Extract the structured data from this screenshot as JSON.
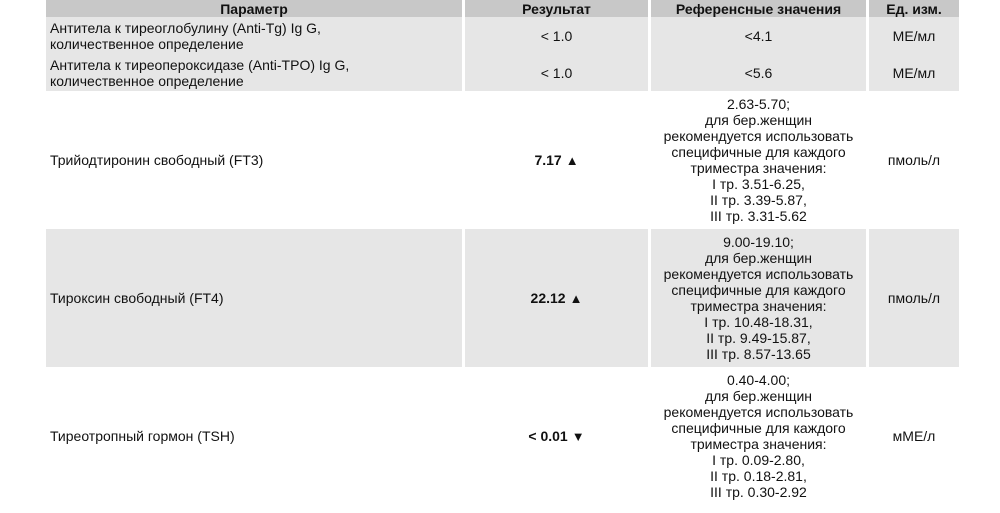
{
  "headers": {
    "param": "Параметр",
    "result": "Результат",
    "reference": "Референсные значения",
    "unit": "Ед. изм."
  },
  "rows": [
    {
      "param_line1": "Антитела к тиреоглобулину (Anti-Tg) Ig G,",
      "param_line2": "количественное определение",
      "result": "< 1.0",
      "flag": "",
      "ref": [
        "<4.1"
      ],
      "unit": "МЕ/мл"
    },
    {
      "param_line1": "Антитела к тиреопероксидазе (Anti-TPO) Ig G,",
      "param_line2": "количественное определение",
      "result": "< 1.0",
      "flag": "",
      "ref": [
        "<5.6"
      ],
      "unit": "МЕ/мл"
    },
    {
      "param_line1": "Трийодтиронин свободный (FT3)",
      "result": "7.17",
      "flag": "▲",
      "ref": [
        "2.63-5.70;",
        "для бер.женщин",
        "рекомендуется использовать",
        "специфичные для каждого",
        "триместра значения:",
        "I тр. 3.51-6.25,",
        "II тр. 3.39-5.87,",
        "III тр. 3.31-5.62"
      ],
      "unit": "пмоль/л"
    },
    {
      "param_line1": "Тироксин свободный (FT4)",
      "result": "22.12",
      "flag": "▲",
      "ref": [
        "9.00-19.10;",
        "для бер.женщин",
        "рекомендуется использовать",
        "специфичные для каждого",
        "триместра значения:",
        "I тр. 10.48-18.31,",
        "II тр. 9.49-15.87,",
        "III тр. 8.57-13.65"
      ],
      "unit": "пмоль/л"
    },
    {
      "param_line1": "Тиреотропный гормон (TSH)",
      "result": "< 0.01",
      "flag": "▼",
      "ref": [
        "0.40-4.00;",
        "для бер.женщин",
        "рекомендуется использовать",
        "специфичные для каждого",
        "триместра значения:",
        "I тр. 0.09-2.80,",
        "II тр. 0.18-2.81,",
        "III тр. 0.30-2.92"
      ],
      "unit": "мМЕ/л"
    }
  ]
}
